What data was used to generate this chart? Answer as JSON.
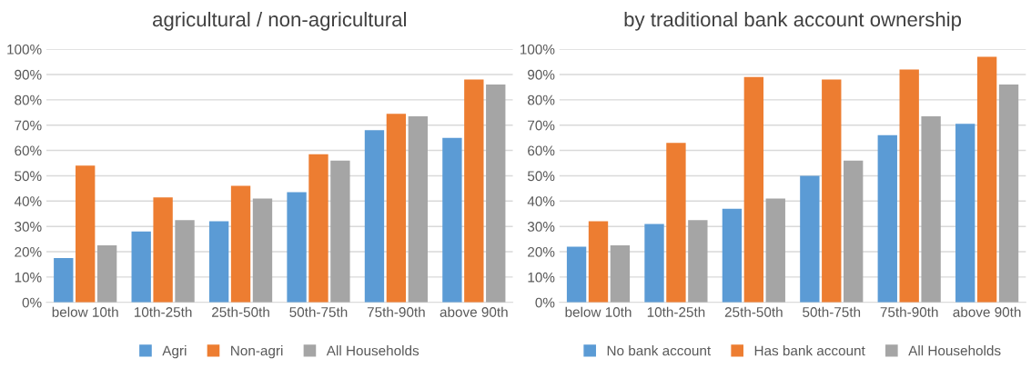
{
  "chart_data": [
    {
      "type": "bar",
      "title": "agricultural / non-agricultural",
      "categories": [
        "below 10th",
        "10th-25th",
        "25th-50th",
        "50th-75th",
        "75th-90th",
        "above 90th"
      ],
      "series": [
        {
          "name": "Agri",
          "color": "#5b9bd5",
          "values": [
            17.5,
            28,
            32,
            43.5,
            68,
            65
          ]
        },
        {
          "name": "Non-agri",
          "color": "#ed7d31",
          "values": [
            54,
            41.5,
            46,
            58.5,
            74.5,
            88
          ]
        },
        {
          "name": "All Households",
          "color": "#a5a5a5",
          "values": [
            22.5,
            32.5,
            41,
            56,
            73.5,
            86
          ]
        }
      ],
      "ylim": [
        0,
        100
      ],
      "yticks": [
        {
          "value": 0,
          "label": "0%"
        },
        {
          "value": 10,
          "label": "10%"
        },
        {
          "value": 20,
          "label": "20%"
        },
        {
          "value": 30,
          "label": "30%"
        },
        {
          "value": 40,
          "label": "40%"
        },
        {
          "value": 50,
          "label": "50%"
        },
        {
          "value": 60,
          "label": "60%"
        },
        {
          "value": 70,
          "label": "70%"
        },
        {
          "value": 80,
          "label": "80%"
        },
        {
          "value": 90,
          "label": "90%"
        },
        {
          "value": 100,
          "label": "100%"
        }
      ],
      "grid": "y",
      "legend": "bottom"
    },
    {
      "type": "bar",
      "title": "by traditional bank account ownership",
      "categories": [
        "below 10th",
        "10th-25th",
        "25th-50th",
        "50th-75th",
        "75th-90th",
        "above 90th"
      ],
      "series": [
        {
          "name": "No bank account",
          "color": "#5b9bd5",
          "values": [
            22,
            31,
            37,
            50,
            66,
            70.5
          ]
        },
        {
          "name": "Has bank account",
          "color": "#ed7d31",
          "values": [
            32,
            63,
            89,
            88,
            92,
            97
          ]
        },
        {
          "name": "All Households",
          "color": "#a5a5a5",
          "values": [
            22.5,
            32.5,
            41,
            56,
            73.5,
            86
          ]
        }
      ],
      "ylim": [
        0,
        100
      ],
      "yticks": [
        {
          "value": 0,
          "label": "0%"
        },
        {
          "value": 10,
          "label": "10%"
        },
        {
          "value": 20,
          "label": "20%"
        },
        {
          "value": 30,
          "label": "30%"
        },
        {
          "value": 40,
          "label": "40%"
        },
        {
          "value": 50,
          "label": "50%"
        },
        {
          "value": 60,
          "label": "60%"
        },
        {
          "value": 70,
          "label": "70%"
        },
        {
          "value": 80,
          "label": "80%"
        },
        {
          "value": 90,
          "label": "90%"
        },
        {
          "value": 100,
          "label": "100%"
        }
      ],
      "grid": "y",
      "legend": "bottom"
    }
  ]
}
